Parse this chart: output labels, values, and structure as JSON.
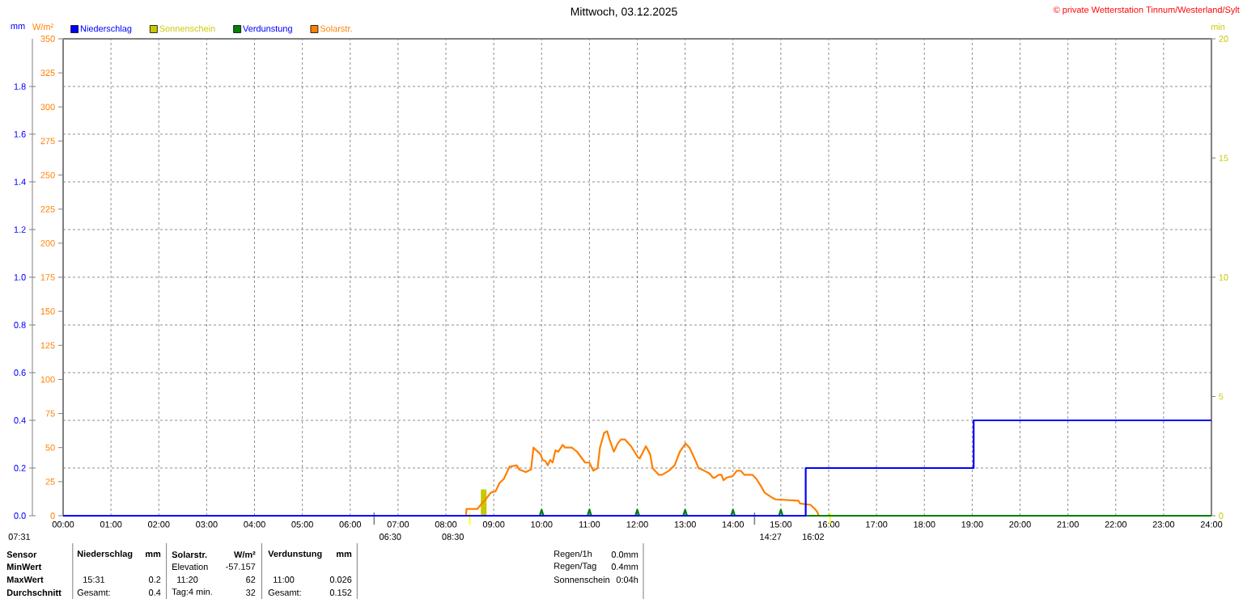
{
  "chart_data": {
    "type": "line",
    "title": "Mittwoch, 03.12.2025",
    "ylabel": "mm",
    "y2label": "W/m²",
    "y3label": "min",
    "xlim": [
      0,
      24
    ],
    "xticks": [
      {
        "value": 0,
        "label": "00:00"
      },
      {
        "value": 1,
        "label": "01:00"
      },
      {
        "value": 2,
        "label": "02:00"
      },
      {
        "value": 3,
        "label": "03:00"
      },
      {
        "value": 4,
        "label": "04:00"
      },
      {
        "value": 5,
        "label": "05:00"
      },
      {
        "value": 6,
        "label": "06:00"
      },
      {
        "value": 7,
        "label": "07:00"
      },
      {
        "value": 8,
        "label": "08:00"
      },
      {
        "value": 9,
        "label": "09:00"
      },
      {
        "value": 10,
        "label": "10:00"
      },
      {
        "value": 11,
        "label": "11:00"
      },
      {
        "value": 12,
        "label": "12:00"
      },
      {
        "value": 13,
        "label": "13:00"
      },
      {
        "value": 14,
        "label": "14:00"
      },
      {
        "value": 15,
        "label": "15:00"
      },
      {
        "value": 16,
        "label": "16:00"
      },
      {
        "value": 17,
        "label": "17:00"
      },
      {
        "value": 18,
        "label": "18:00"
      },
      {
        "value": 19,
        "label": "19:00"
      },
      {
        "value": 20,
        "label": "20:00"
      },
      {
        "value": 21,
        "label": "21:00"
      },
      {
        "value": 22,
        "label": "22:00"
      },
      {
        "value": 23,
        "label": "23:00"
      },
      {
        "value": 24,
        "label": "24:00"
      }
    ],
    "ylim": [
      0,
      2
    ],
    "yticks": [
      {
        "value": 0,
        "label": "0.0"
      },
      0.2,
      0.4,
      0.6,
      0.8,
      {
        "value": 1,
        "label": "1.0"
      },
      1.2,
      1.4,
      1.6,
      1.8
    ],
    "y2lim": [
      0,
      350
    ],
    "y2ticks": [
      0,
      25,
      50,
      75,
      100,
      125,
      150,
      175,
      200,
      225,
      250,
      275,
      300,
      325,
      350
    ],
    "y3lim": [
      0,
      20
    ],
    "y3ticks": [
      0,
      5,
      10,
      15,
      20
    ],
    "grid": true,
    "legend": "top left",
    "series": [
      {
        "name": "Niederschlag",
        "type": "step",
        "color": "#0000ff",
        "x": [
          0,
          15.52,
          19.03,
          24
        ],
        "values": [
          0,
          0.2,
          0.4,
          0.4
        ]
      },
      {
        "name": "Sonnenschein",
        "type": "bar",
        "axis": "y3",
        "color": "#c8c800",
        "x": [
          8.79
        ],
        "values": [
          1.1
        ]
      },
      {
        "name": "Verdunstung",
        "color": "#008000",
        "x": [
          9.96,
          10,
          10.04,
          10.96,
          11,
          11.04,
          11.96,
          12,
          12.04,
          12.96,
          13,
          13.04,
          13.96,
          14,
          14.04,
          14.96,
          15,
          15.04,
          24
        ],
        "values": [
          0,
          0.025,
          0,
          0,
          0.026,
          0,
          0,
          0.025,
          0,
          0,
          0.025,
          0,
          0,
          0.025,
          0,
          0,
          0.025,
          0,
          0
        ]
      },
      {
        "name": "Solarstr.",
        "axis": "y2",
        "color": "#ff8000",
        "x": [
          8.42,
          8.43,
          8.66,
          8.75,
          8.83,
          8.94,
          9.04,
          9.12,
          9.21,
          9.33,
          9.48,
          9.53,
          9.67,
          9.78,
          9.83,
          9.98,
          10.02,
          10.08,
          10.13,
          10.18,
          10.23,
          10.29,
          10.35,
          10.44,
          10.49,
          10.63,
          10.74,
          10.91,
          11.0,
          11.08,
          11.17,
          11.22,
          11.31,
          11.37,
          11.42,
          11.51,
          11.59,
          11.66,
          11.74,
          11.87,
          12.01,
          12.05,
          12.18,
          12.27,
          12.32,
          12.45,
          12.52,
          12.66,
          12.78,
          12.89,
          13.01,
          13.09,
          13.21,
          13.28,
          13.4,
          13.51,
          13.58,
          13.62,
          13.7,
          13.76,
          13.8,
          13.87,
          13.99,
          14.08,
          14.16,
          14.24,
          14.41,
          14.49,
          14.58,
          14.66,
          14.83,
          14.89,
          15.37,
          15.4,
          15.62,
          15.71,
          15.76,
          15.79
        ],
        "values": [
          0,
          5,
          5,
          9,
          12,
          17,
          18,
          24,
          27,
          36,
          37,
          34,
          32,
          34,
          50,
          45,
          41,
          40,
          37,
          41,
          39,
          48,
          47,
          52,
          50,
          50,
          47,
          39,
          39,
          33,
          35,
          50,
          61,
          62,
          56,
          47,
          53,
          56,
          56,
          51,
          43,
          42,
          51,
          45,
          35,
          30,
          30,
          33,
          37,
          47,
          53,
          50,
          41,
          35,
          33,
          31,
          28,
          28,
          30,
          30,
          26,
          28,
          29,
          33,
          33,
          30,
          30,
          27,
          22,
          17,
          13,
          12,
          11,
          9,
          8,
          5,
          3,
          0
        ]
      }
    ],
    "ref_lines": [
      {
        "axis": "x",
        "value": 6.5,
        "label": "06:30",
        "color": "#808080"
      },
      {
        "axis": "x",
        "value": 8.5,
        "label": "08:30",
        "color": "#ffff00"
      },
      {
        "axis": "x",
        "value": 14.45,
        "label": "14:27",
        "color": "#808080"
      },
      {
        "axis": "x",
        "value": 16.03,
        "label": "16:02",
        "color": "#ffff00"
      }
    ],
    "annotations": [
      "© private Wetterstation Tinnum/Westerland/Sylt",
      "07:31",
      "Sensor",
      "MinWert",
      "MaxWert",
      "Durchschnitt",
      "Niederschlag",
      "mm",
      "15:31",
      "0.2",
      "Gesamt:",
      "0.4",
      "Solarstr.",
      "W/m²",
      "Elevation",
      "-57.157",
      "11:20",
      "62",
      "Tag:4 min.",
      "32",
      "Verdunstung",
      "mm",
      "11:00",
      "0.026",
      "Gesamt:",
      "0.152",
      "Regen/1h",
      "0.0mm",
      "Regen/Tag",
      "0.4mm",
      "Sonnenschein",
      "0:04h"
    ]
  }
}
